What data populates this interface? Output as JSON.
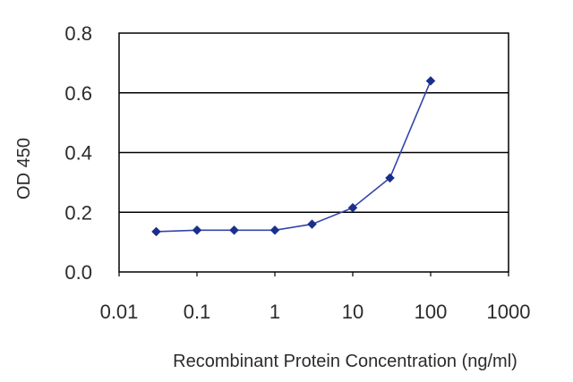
{
  "chart_data": {
    "type": "line",
    "title": "",
    "xlabel": "Recombinant Protein Concentration (ng/ml)",
    "ylabel": "OD 450",
    "x_scale": "log",
    "xlim": [
      0.01,
      1000
    ],
    "ylim": [
      0.0,
      0.8
    ],
    "x_ticks": [
      "0.01",
      "0.1",
      "1",
      "10",
      "100",
      "1000"
    ],
    "y_ticks": [
      "0.0",
      "0.2",
      "0.4",
      "0.6",
      "0.8"
    ],
    "grid": "horizontal",
    "series": [
      {
        "x": [
          0.03,
          0.1,
          0.3,
          1,
          3,
          10,
          30,
          100
        ],
        "y": [
          0.135,
          0.14,
          0.14,
          0.14,
          0.16,
          0.215,
          0.315,
          0.64
        ]
      }
    ],
    "colors": {
      "line": "#3344aa",
      "marker": "#1a2f8c",
      "grid": "#000000",
      "frame": "#000000"
    }
  }
}
